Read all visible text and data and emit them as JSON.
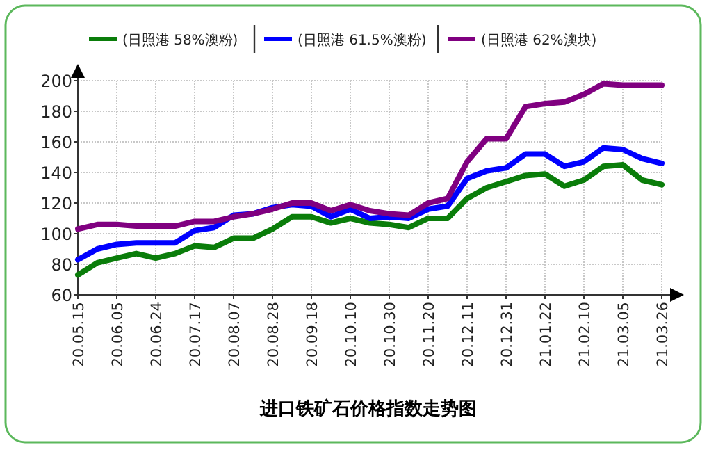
{
  "chart_data": {
    "type": "line",
    "title": "进口铁矿石价格指数走势图",
    "categories": [
      "20.05.15",
      null,
      "20.06.05",
      null,
      "20.06.24",
      null,
      "20.07.17",
      null,
      "20.08.07",
      null,
      "20.08.28",
      null,
      "20.09.18",
      null,
      "20.10.10",
      null,
      "20.10.30",
      null,
      "20.11.20",
      null,
      "20.12.11",
      null,
      "20.12.31",
      null,
      "21.01.22",
      null,
      "21.02.10",
      null,
      "21.03.05",
      null,
      "21.03.26"
    ],
    "series": [
      {
        "name": "(日照港 58%澳粉)",
        "color": "#0a7d0a",
        "values": [
          73,
          81,
          84,
          87,
          84,
          87,
          92,
          91,
          97,
          97,
          103,
          111,
          111,
          107,
          110,
          107,
          106,
          104,
          110,
          110,
          123,
          130,
          134,
          138,
          139,
          131,
          135,
          144,
          145,
          135,
          132
        ]
      },
      {
        "name": "(日照港 61.5%澳粉)",
        "color": "#0000ff",
        "values": [
          83,
          90,
          93,
          94,
          94,
          94,
          102,
          104,
          112,
          113,
          117,
          119,
          118,
          111,
          116,
          110,
          111,
          110,
          116,
          118,
          136,
          141,
          143,
          152,
          152,
          144,
          147,
          156,
          155,
          149,
          146
        ]
      },
      {
        "name": "(日照港 62%澳块)",
        "color": "#800080",
        "values": [
          103,
          106,
          106,
          105,
          105,
          105,
          108,
          108,
          111,
          113,
          116,
          120,
          120,
          115,
          119,
          115,
          113,
          112,
          120,
          123,
          147,
          162,
          162,
          183,
          185,
          186,
          191,
          198,
          197,
          197,
          197
        ]
      }
    ],
    "ylim": [
      60,
      200
    ],
    "yticks": [
      60,
      80,
      100,
      120,
      140,
      160,
      180,
      200
    ],
    "grid": true,
    "legend": "top",
    "marker": "none",
    "line_style": "solid"
  }
}
